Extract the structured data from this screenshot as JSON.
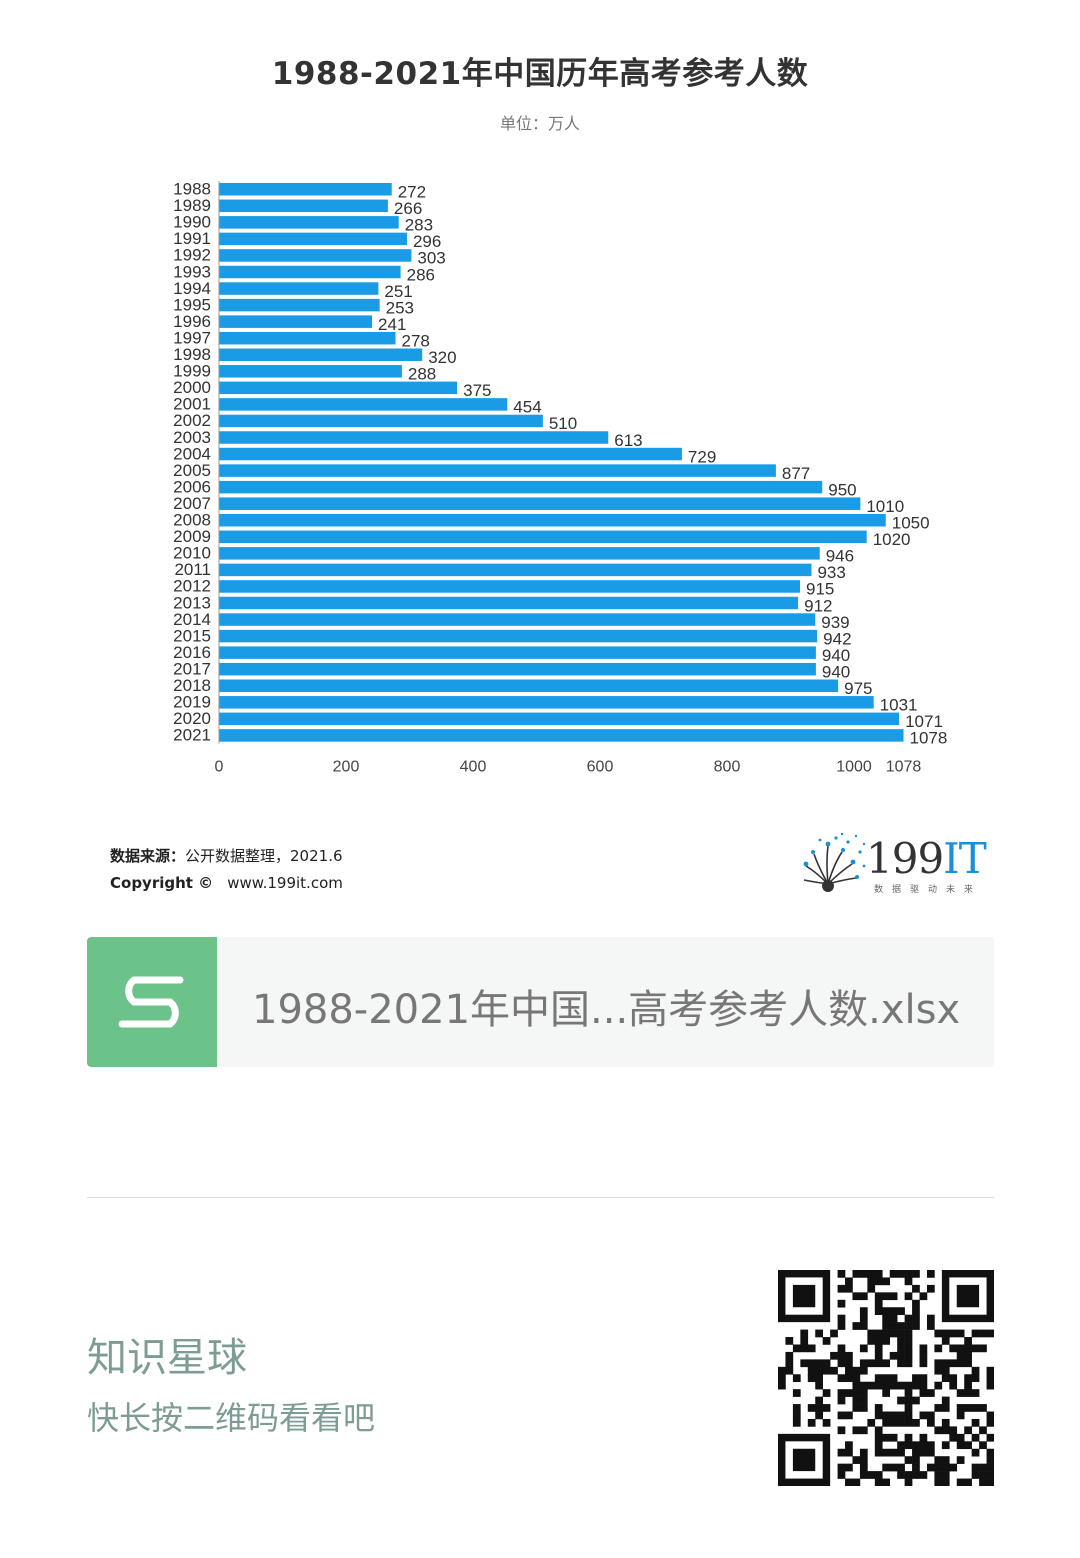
{
  "header": {
    "title": "1988-2021年中国历年高考参考人数",
    "unit": "单位：万人"
  },
  "source": {
    "label": "数据来源：",
    "text": "公开数据整理，2021.6",
    "copyright_label": "Copyright ©",
    "url": "www.199it.com"
  },
  "brand": {
    "name": "199",
    "name_it": "IT",
    "slogan": "数据驱动未来",
    "icon": "dandelion-logo-icon"
  },
  "file_card": {
    "icon": "spreadsheet-s-icon",
    "name": "1988-2021年中国...高考参考人数.xlsx"
  },
  "planet": {
    "title": "知识星球",
    "subtitle": "快长按二维码看看吧"
  },
  "colors": {
    "bar": "#1a9be6",
    "file_icon_bg": "#6cc38a",
    "planet_text": "#7c9c94"
  },
  "chart_data": {
    "type": "bar",
    "orientation": "horizontal",
    "categories": [
      "1988",
      "1989",
      "1990",
      "1991",
      "1992",
      "1993",
      "1994",
      "1995",
      "1996",
      "1997",
      "1998",
      "1999",
      "2000",
      "2001",
      "2002",
      "2003",
      "2004",
      "2005",
      "2006",
      "2007",
      "2008",
      "2009",
      "2010",
      "2011",
      "2012",
      "2013",
      "2014",
      "2015",
      "2016",
      "2017",
      "2018",
      "2019",
      "2020",
      "2021"
    ],
    "series": [
      {
        "values": [
          272,
          266,
          283,
          296,
          303,
          286,
          251,
          253,
          241,
          278,
          320,
          288,
          375,
          454,
          510,
          613,
          729,
          877,
          950,
          1010,
          1050,
          1020,
          946,
          933,
          915,
          912,
          939,
          942,
          940,
          940,
          975,
          1031,
          1071,
          1078
        ]
      }
    ],
    "x_ticks": [
      "0",
      "200",
      "400",
      "600",
      "800",
      "1000",
      "1078"
    ],
    "x_tick_values": [
      0,
      200,
      400,
      600,
      800,
      1000,
      1078
    ],
    "xlim": [
      0,
      1078
    ],
    "grid": false,
    "legend": "none"
  }
}
